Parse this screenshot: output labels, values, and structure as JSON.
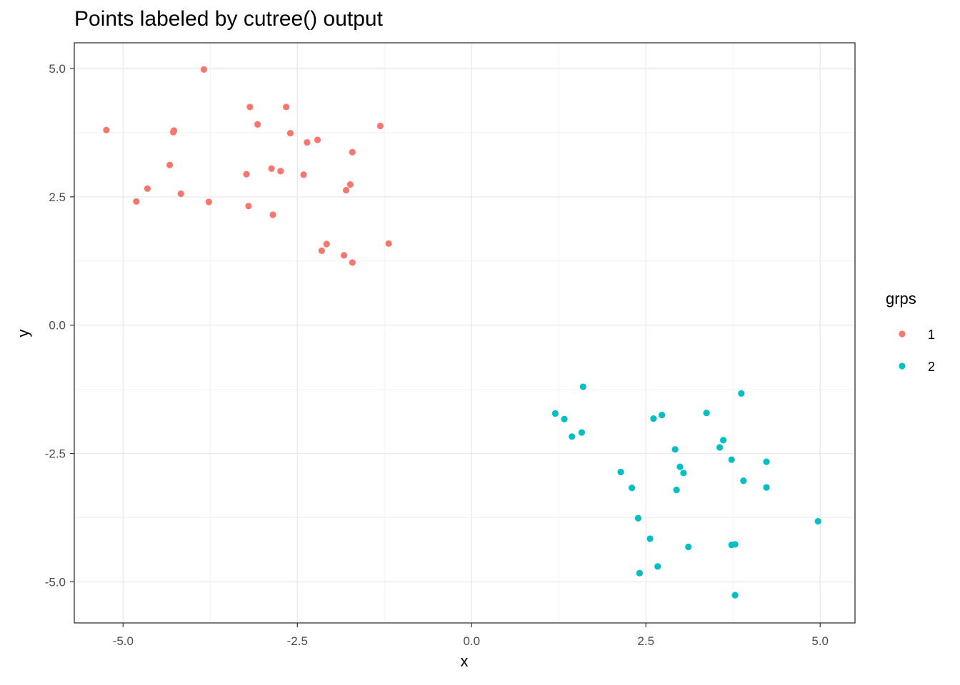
{
  "chart_data": {
    "type": "scatter",
    "title": "Points labeled by cutree() output",
    "xlabel": "x",
    "ylabel": "y",
    "xlim": [
      -5.7,
      5.5
    ],
    "ylim": [
      -5.8,
      5.5
    ],
    "x_ticks": [
      -5.0,
      -2.5,
      0.0,
      2.5,
      5.0
    ],
    "x_tick_labels": [
      "-5.0",
      "-2.5",
      "0.0",
      "2.5",
      "5.0"
    ],
    "y_ticks": [
      5.0,
      2.5,
      0.0,
      -2.5,
      -5.0
    ],
    "y_tick_labels": [
      "5.0",
      "2.5",
      "0.0",
      "-2.5",
      "-5.0"
    ],
    "grid": true,
    "legend": {
      "title": "grps",
      "position": "right"
    },
    "series": [
      {
        "name": "1",
        "color": "#F8766D",
        "points": [
          [
            -5.24,
            3.8
          ],
          [
            -3.84,
            4.98
          ],
          [
            -4.81,
            2.41
          ],
          [
            -4.65,
            2.66
          ],
          [
            -4.33,
            3.12
          ],
          [
            -4.28,
            3.76
          ],
          [
            -4.27,
            3.79
          ],
          [
            -4.17,
            2.56
          ],
          [
            -3.77,
            2.4
          ],
          [
            -3.18,
            4.25
          ],
          [
            -3.07,
            3.91
          ],
          [
            -2.66,
            4.25
          ],
          [
            -2.6,
            3.74
          ],
          [
            -2.36,
            3.56
          ],
          [
            -2.21,
            3.61
          ],
          [
            -1.71,
            3.37
          ],
          [
            -1.31,
            3.88
          ],
          [
            -3.23,
            2.94
          ],
          [
            -2.87,
            3.05
          ],
          [
            -2.74,
            3.0
          ],
          [
            -2.41,
            2.93
          ],
          [
            -1.8,
            2.63
          ],
          [
            -1.74,
            2.74
          ],
          [
            -3.2,
            2.32
          ],
          [
            -2.85,
            2.15
          ],
          [
            -2.08,
            1.58
          ],
          [
            -2.15,
            1.45
          ],
          [
            -1.83,
            1.36
          ],
          [
            -1.71,
            1.22
          ],
          [
            -1.19,
            1.59
          ]
        ]
      },
      {
        "name": "2",
        "color": "#00BFC4",
        "points": [
          [
            1.2,
            -1.72
          ],
          [
            1.33,
            -1.83
          ],
          [
            1.44,
            -2.17
          ],
          [
            1.58,
            -2.09
          ],
          [
            1.6,
            -1.2
          ],
          [
            2.14,
            -2.86
          ],
          [
            2.3,
            -3.17
          ],
          [
            2.39,
            -3.76
          ],
          [
            2.41,
            -4.83
          ],
          [
            2.56,
            -4.16
          ],
          [
            2.61,
            -1.82
          ],
          [
            2.67,
            -4.7
          ],
          [
            2.73,
            -1.75
          ],
          [
            2.92,
            -2.42
          ],
          [
            2.94,
            -3.21
          ],
          [
            2.99,
            -2.76
          ],
          [
            3.04,
            -2.88
          ],
          [
            3.11,
            -4.32
          ],
          [
            3.37,
            -1.71
          ],
          [
            3.56,
            -2.38
          ],
          [
            3.61,
            -2.24
          ],
          [
            3.73,
            -2.62
          ],
          [
            3.73,
            -4.28
          ],
          [
            3.78,
            -4.27
          ],
          [
            3.78,
            -5.26
          ],
          [
            3.87,
            -1.33
          ],
          [
            3.9,
            -3.03
          ],
          [
            4.23,
            -2.66
          ],
          [
            4.23,
            -3.16
          ],
          [
            4.97,
            -3.82
          ]
        ]
      }
    ]
  }
}
